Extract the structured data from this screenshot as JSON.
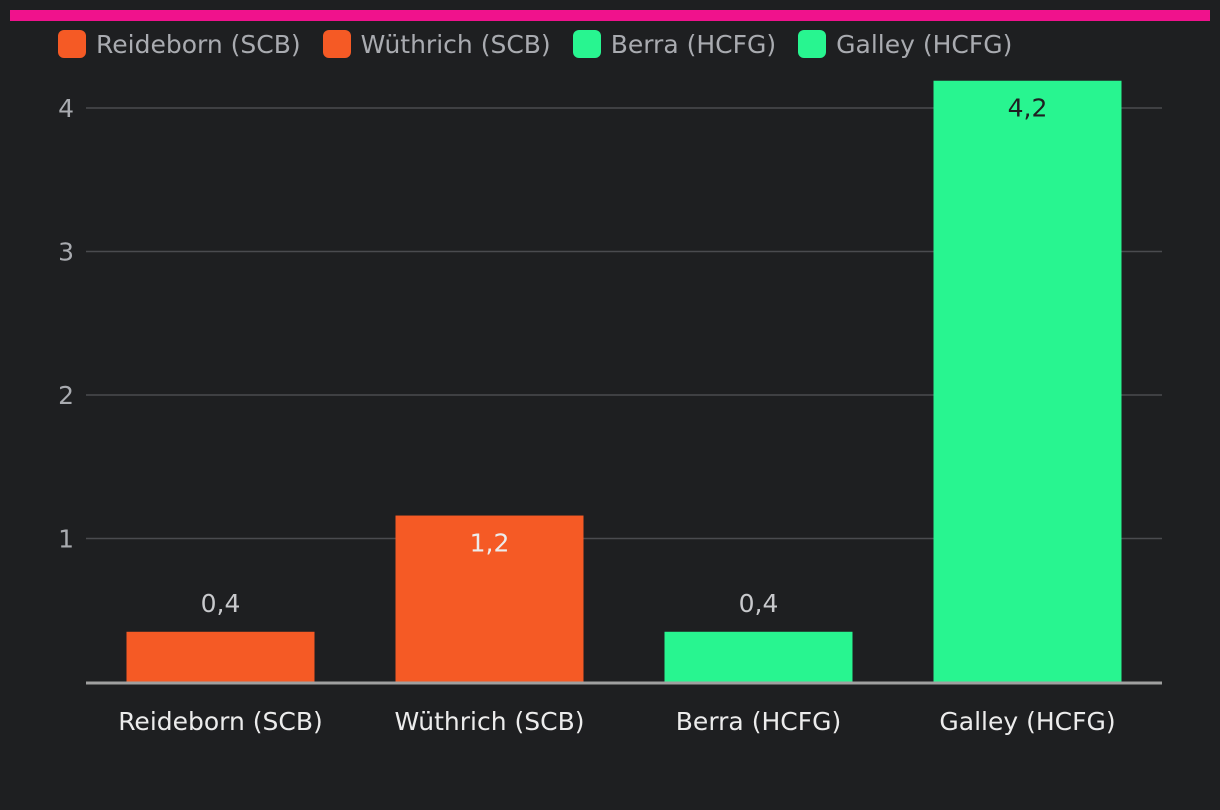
{
  "colors": {
    "background": "#1e1f21",
    "accent": "#f0128c",
    "scb": "#f55a25",
    "hcfg": "#28f590",
    "grid": "#4a4b4f",
    "axis": "#a0a0a0",
    "label_light": "#ececec",
    "label_dark": "#1e1f21"
  },
  "legend": {
    "items": [
      {
        "label": "Reideborn (SCB)",
        "color": "#f55a25"
      },
      {
        "label": "Wüthrich (SCB)",
        "color": "#f55a25"
      },
      {
        "label": "Berra (HCFG)",
        "color": "#28f590"
      },
      {
        "label": "Galley (HCFG)",
        "color": "#28f590"
      }
    ]
  },
  "chart_data": {
    "type": "bar",
    "categories": [
      "Reideborn (SCB)",
      "Wüthrich (SCB)",
      "Berra (HCFG)",
      "Galley (HCFG)"
    ],
    "values": [
      0.35,
      1.16,
      0.35,
      4.19
    ],
    "data_labels": [
      "0,4",
      "1,2",
      "0,4",
      "4,2"
    ],
    "bar_colors": [
      "#f55a25",
      "#f55a25",
      "#28f590",
      "#28f590"
    ],
    "ylim": [
      0,
      4
    ],
    "yticks": [
      1,
      2,
      3,
      4
    ],
    "ytick_labels": [
      "1",
      "2",
      "3",
      "4"
    ],
    "grid": true,
    "legend_position": "top-left"
  }
}
